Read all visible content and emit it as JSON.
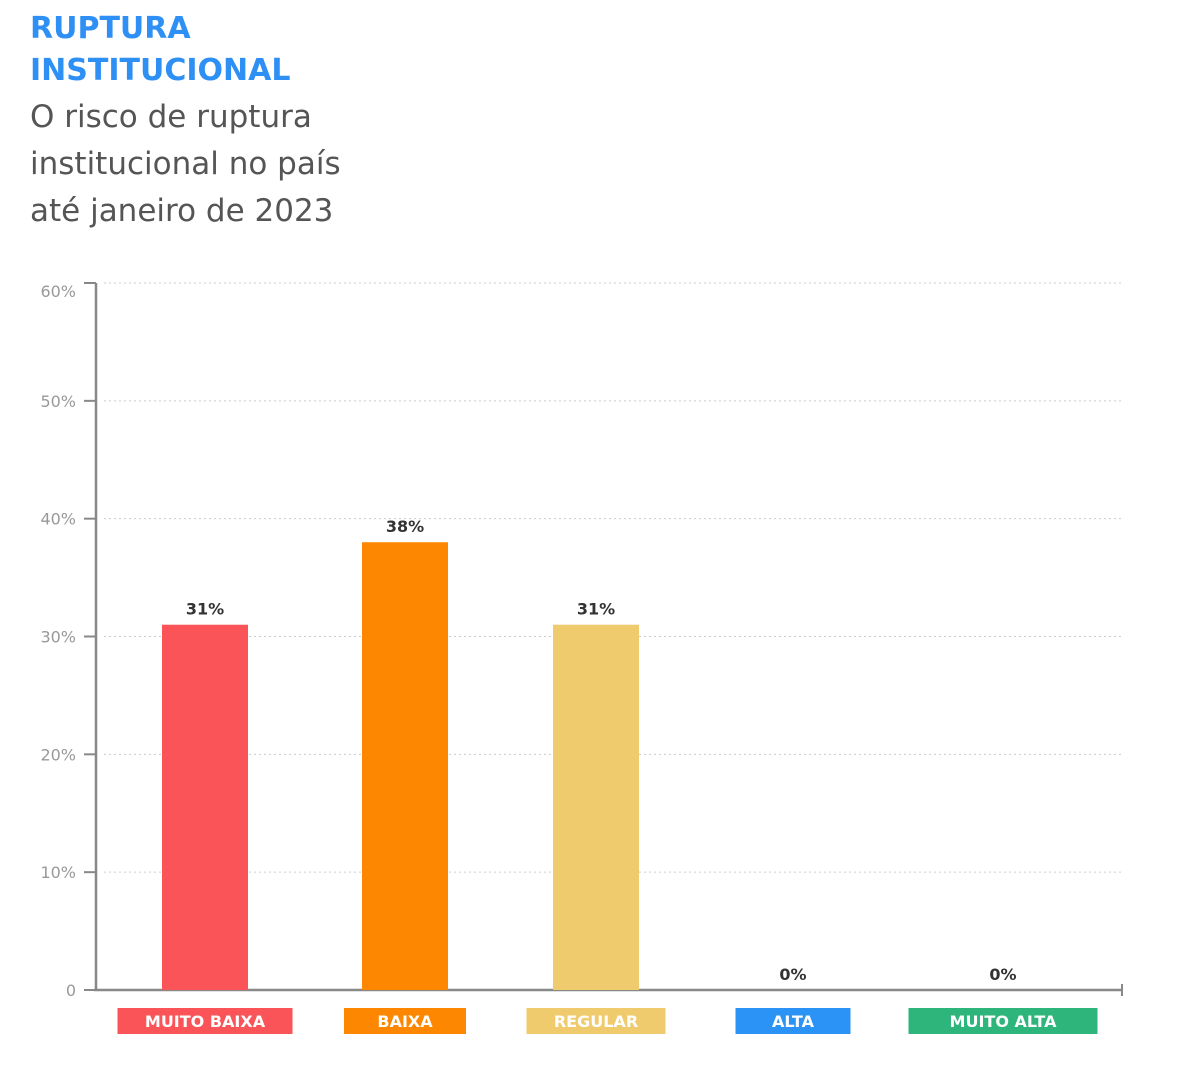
{
  "chart_data": {
    "type": "bar",
    "title": "RUPTURA INSTITUCIONAL",
    "subtitle": "O risco de ruptura institucional no país até janeiro de 2023",
    "categories": [
      "MUITO BAIXA",
      "BAIXA",
      "REGULAR",
      "ALTA",
      "MUITO ALTA"
    ],
    "values": [
      31,
      38,
      31,
      0,
      0
    ],
    "value_labels": [
      "31%",
      "38%",
      "31%",
      "0%",
      "0%"
    ],
    "colors": [
      "#fa5458",
      "#fd8700",
      "#f0cb6e",
      "#2a93f5",
      "#2db57c"
    ],
    "yticks": [
      0,
      10,
      20,
      30,
      40,
      50,
      60
    ],
    "ytick_labels": [
      "0",
      "10%",
      "20%",
      "30%",
      "40%",
      "50%",
      "60%"
    ],
    "ylim": [
      0,
      60
    ],
    "grid": true,
    "xlabel": "",
    "ylabel": ""
  }
}
